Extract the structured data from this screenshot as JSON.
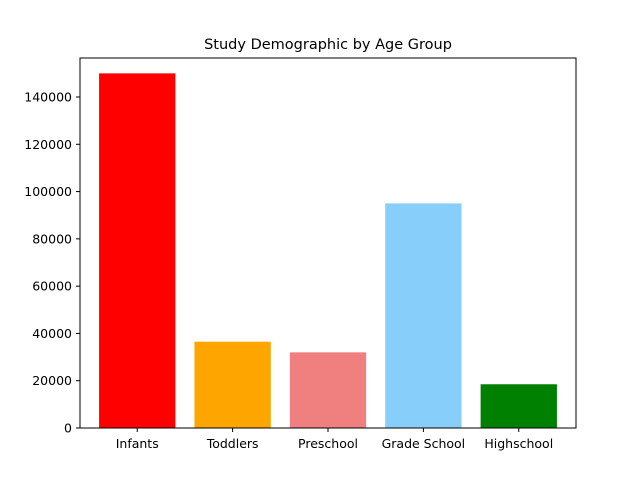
{
  "chart_data": {
    "type": "bar",
    "title": "Study Demographic by Age Group",
    "xlabel": "",
    "ylabel": "",
    "categories": [
      "Infants",
      "Toddlers",
      "Preschool",
      "Grade School",
      "Highschool"
    ],
    "values": [
      150000,
      36500,
      32000,
      95000,
      18500
    ],
    "colors": [
      "#ff0000",
      "#ffa500",
      "#f08080",
      "#87cefa",
      "#008000"
    ],
    "ylim": [
      0,
      156500
    ],
    "yticks": [
      0,
      20000,
      40000,
      60000,
      80000,
      100000,
      120000,
      140000
    ],
    "ytick_labels": [
      "0",
      "20000",
      "40000",
      "60000",
      "80000",
      "100000",
      "120000",
      "140000"
    ],
    "grid": false,
    "legend": "none"
  }
}
